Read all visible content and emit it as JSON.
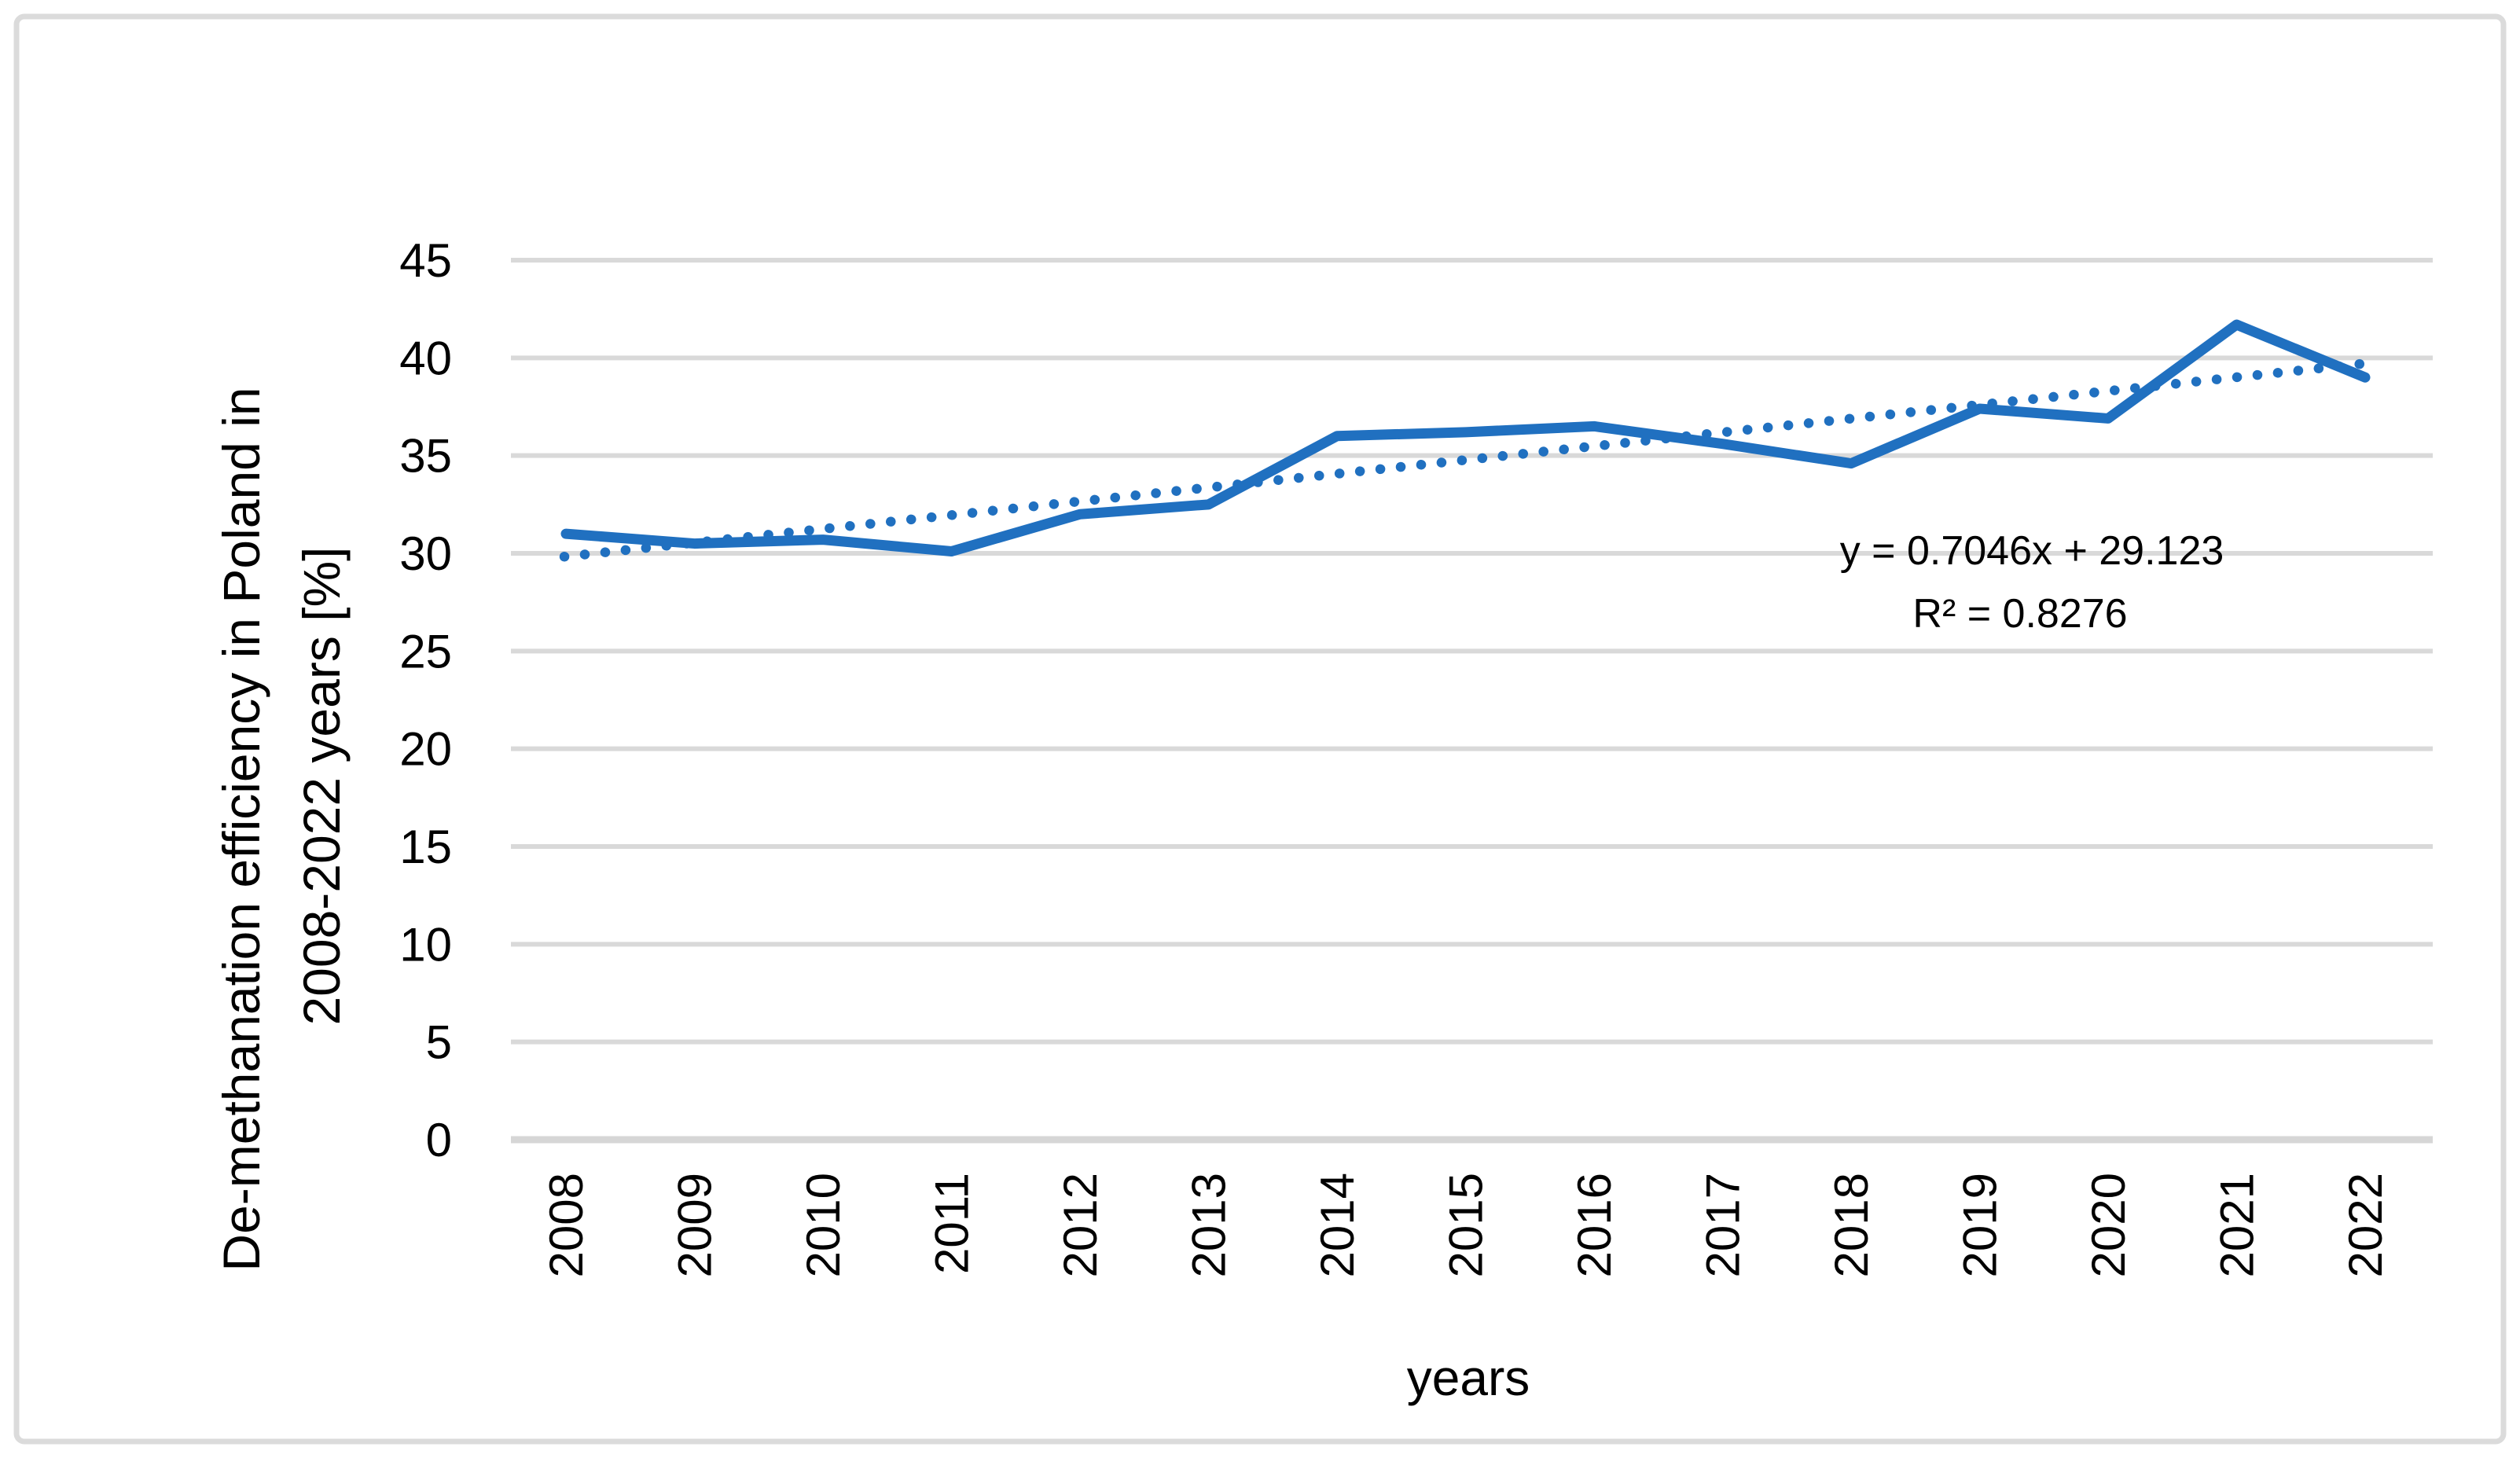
{
  "frame": {
    "border_color": "#DBDBDB",
    "background_color": "#FFFFFF"
  },
  "chart_data": {
    "type": "line",
    "title": "",
    "categories": [
      "2008",
      "2009",
      "2010",
      "2011",
      "2012",
      "2013",
      "2014",
      "2015",
      "2016",
      "2017",
      "2018",
      "2019",
      "2020",
      "2021",
      "2022"
    ],
    "series": [
      {
        "name": "De-methanation efficiency in Poland",
        "color": "#2070C0",
        "values": [
          31.0,
          30.5,
          30.7,
          30.1,
          32.0,
          32.5,
          36.0,
          36.2,
          36.5,
          35.6,
          34.6,
          37.4,
          36.9,
          41.7,
          39.0
        ]
      }
    ],
    "trendline": {
      "style": "dotted",
      "color": "#2070C0",
      "slope": 0.7046,
      "intercept": 29.123,
      "start_value": 29.83,
      "end_value": 39.69,
      "equation_label": "y = 0.7046x + 29.123",
      "r2_label": "R² = 0.8276"
    },
    "xlabel": "years",
    "ylabel_line1": "De-methanation efficiency in Poland in",
    "ylabel_line2": "2008-2022 years [%]",
    "ylim": [
      0,
      45
    ],
    "yticks": [
      0,
      5,
      10,
      15,
      20,
      25,
      30,
      35,
      40,
      45
    ],
    "grid": true,
    "gridline_color": "#D9D9D9",
    "axisline_color": "#D6D6D6",
    "text_color": "#000000",
    "legend_position": "none"
  }
}
